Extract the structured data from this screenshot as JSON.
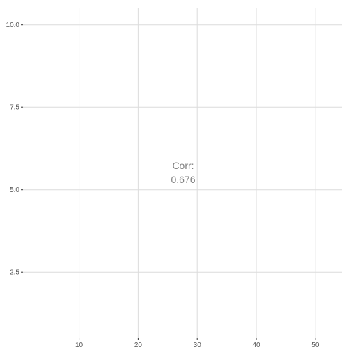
{
  "chart_data": {
    "type": "scatter",
    "title": "",
    "xlabel": "",
    "ylabel": "",
    "xlim": [
      0.5,
      54.5
    ],
    "ylim": [
      0.5,
      10.5
    ],
    "x_ticks": [
      10,
      20,
      30,
      40,
      50
    ],
    "x_tick_labels": [
      "10",
      "20",
      "30",
      "40",
      "50"
    ],
    "y_ticks": [
      2.5,
      5.0,
      7.5,
      10.0
    ],
    "y_tick_labels": [
      "2.5",
      "5.0",
      "7.5",
      "10.0"
    ],
    "grid": true,
    "series": [],
    "annotation": {
      "label": "Corr:",
      "value": "0.676"
    }
  },
  "colors": {
    "grid": "#dcdcdc",
    "tick_text": "#555555",
    "tick_mark": "#333333",
    "annotation_text": "#808080",
    "background": "#ffffff"
  }
}
